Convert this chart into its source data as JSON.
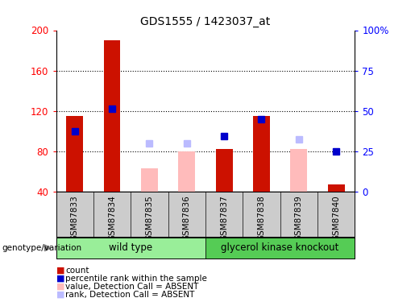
{
  "title": "GDS1555 / 1423037_at",
  "samples": [
    "GSM87833",
    "GSM87834",
    "GSM87835",
    "GSM87836",
    "GSM87837",
    "GSM87838",
    "GSM87839",
    "GSM87840"
  ],
  "red_bars": [
    115,
    190,
    null,
    null,
    82,
    115,
    null,
    47
  ],
  "pink_bars": [
    null,
    null,
    63,
    80,
    null,
    null,
    82,
    null
  ],
  "blue_squares": [
    100,
    122,
    null,
    null,
    95,
    112,
    null,
    80
  ],
  "lavender_squares": [
    null,
    null,
    88,
    88,
    null,
    null,
    92,
    null
  ],
  "ylim_left": [
    40,
    200
  ],
  "ylim_right": [
    0,
    100
  ],
  "yticks_left": [
    40,
    80,
    120,
    160,
    200
  ],
  "yticks_right": [
    0,
    25,
    50,
    75,
    100
  ],
  "yticklabels_right": [
    "0",
    "25",
    "50",
    "75",
    "100%"
  ],
  "group1_label": "wild type",
  "group2_label": "glycerol kinase knockout",
  "group1_indices": [
    0,
    1,
    2,
    3
  ],
  "group2_indices": [
    4,
    5,
    6,
    7
  ],
  "genotype_label": "genotype/variation",
  "legend_items": [
    {
      "color": "#cc1100",
      "label": "count"
    },
    {
      "color": "#0000cc",
      "label": "percentile rank within the sample"
    },
    {
      "color": "#ffbbbb",
      "label": "value, Detection Call = ABSENT"
    },
    {
      "color": "#bbbbff",
      "label": "rank, Detection Call = ABSENT"
    }
  ],
  "bar_width": 0.45,
  "red_color": "#cc1100",
  "pink_color": "#ffbbbb",
  "blue_color": "#0000cc",
  "lavender_color": "#bbbbff",
  "bg_color": "#ffffff",
  "tick_area_bg": "#cccccc",
  "group1_bg": "#99ee99",
  "group2_bg": "#55cc55",
  "baseline": 40,
  "gridline_values": [
    80,
    120,
    160
  ]
}
